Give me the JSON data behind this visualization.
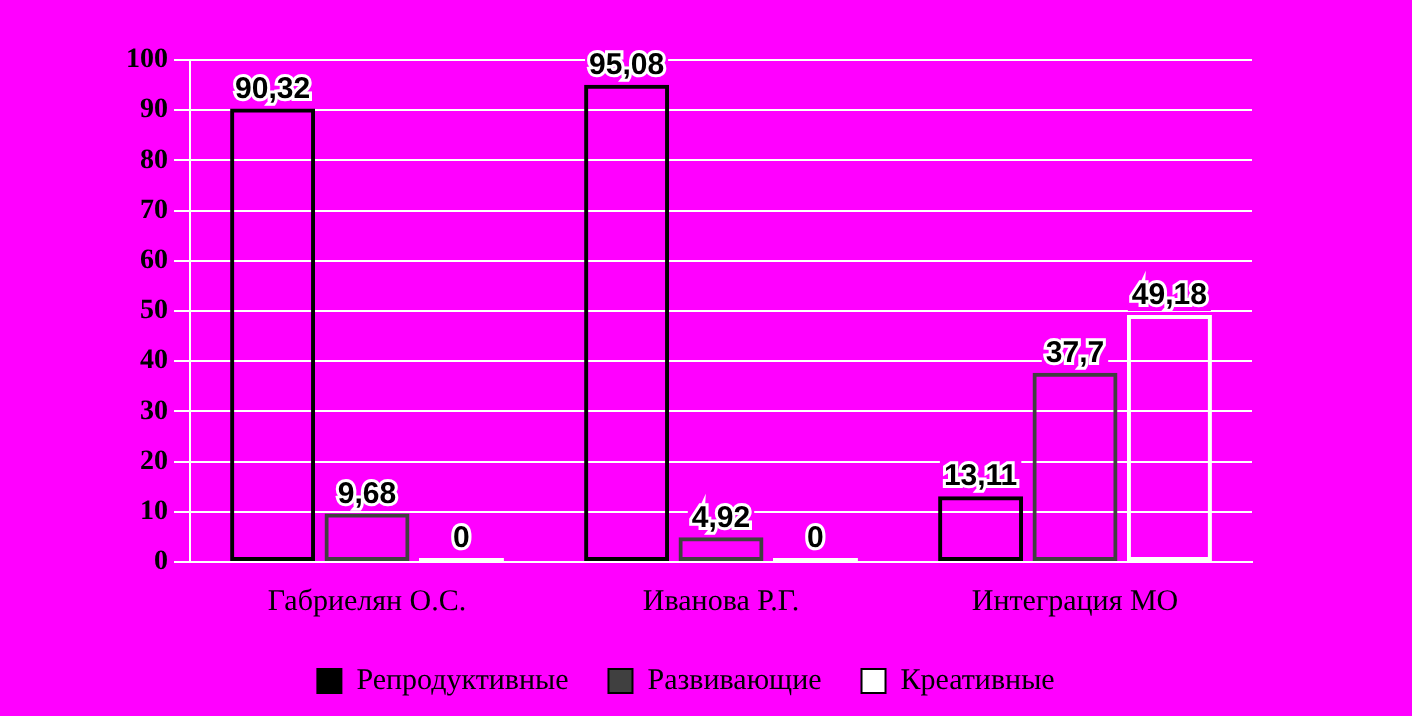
{
  "chart_data": {
    "type": "bar",
    "categories": [
      "Габриелян О.С.",
      "Иванова Р.Г.",
      "Интеграция МО"
    ],
    "series": [
      {
        "name": "Репродуктивные",
        "color": "#000000",
        "values": [
          90.32,
          95.08,
          13.11
        ],
        "value_labels": [
          "90,32",
          "95,08",
          "13,11"
        ]
      },
      {
        "name": "Развивающие",
        "color": "#404040",
        "values": [
          9.68,
          4.92,
          37.7
        ],
        "value_labels": [
          "9,68",
          "4,92",
          "37,7"
        ]
      },
      {
        "name": "Креативные",
        "color": "#ffffff",
        "values": [
          0,
          0,
          49.18
        ],
        "value_labels": [
          "0",
          "0",
          "49,18"
        ]
      }
    ],
    "ylim": [
      0,
      100
    ],
    "yticks": [
      0,
      10,
      20,
      30,
      40,
      50,
      60,
      70,
      80,
      90,
      100
    ],
    "grid": "y",
    "legend": "bottom"
  }
}
